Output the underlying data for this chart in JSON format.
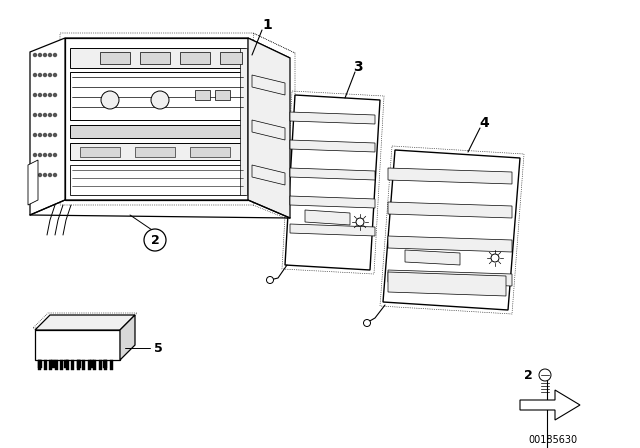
{
  "background_color": "#ffffff",
  "part_number": "00185630",
  "fig_width": 6.4,
  "fig_height": 4.48,
  "dpi": 100,
  "line_color": "#000000",
  "fill_white": "#ffffff",
  "fill_light": "#f0f0f0",
  "fill_mid": "#d8d8d8"
}
